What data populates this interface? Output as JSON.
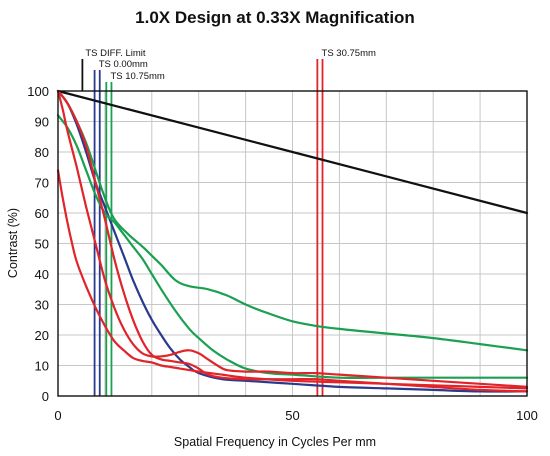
{
  "chart_data": {
    "type": "line",
    "title": "1.0X Design at 0.33X Magnification",
    "xlabel": "Spatial Frequency in Cycles Per mm",
    "ylabel": "Contrast (%)",
    "xlim": [
      0,
      100
    ],
    "ylim": [
      0,
      100
    ],
    "x_ticks": [
      0,
      50,
      100
    ],
    "y_ticks": [
      0,
      10,
      20,
      30,
      40,
      50,
      60,
      70,
      80,
      90,
      100
    ],
    "grid": true,
    "field_annotations": [
      {
        "label": "TS DIFF. Limit",
        "x": [
          5.2
        ],
        "color": "#111111"
      },
      {
        "label": "TS 0.00mm",
        "x": [
          7.8,
          8.9
        ],
        "color": "#2a3a8c"
      },
      {
        "label": "TS 10.75mm",
        "x": [
          10.3,
          11.4
        ],
        "color": "#1aa050"
      },
      {
        "label": "TS 30.75mm",
        "x": [
          55.3,
          56.4
        ],
        "color": "#e0242a"
      }
    ],
    "series": [
      {
        "color": "#111111",
        "width": 2.2,
        "x": [
          0,
          100
        ],
        "y": [
          100,
          60
        ]
      },
      {
        "color": "#2a3a8c",
        "width": 2.2,
        "x": [
          0,
          2,
          4,
          6,
          8,
          10,
          12,
          14,
          16,
          18,
          20,
          22,
          24,
          26,
          28,
          30,
          35,
          40,
          50,
          60,
          70,
          80,
          90,
          100
        ],
        "y": [
          100,
          96,
          89,
          80,
          70,
          62,
          54,
          46,
          38,
          31,
          25,
          20,
          15.5,
          12,
          9.5,
          7.5,
          5.5,
          5,
          4,
          3,
          2.5,
          2,
          1.5,
          1.5
        ]
      },
      {
        "color": "#1aa050",
        "width": 2.2,
        "x": [
          0,
          2,
          4,
          6,
          8,
          10,
          12,
          15,
          18,
          20,
          22,
          25,
          28,
          32,
          36,
          40,
          45,
          50,
          55,
          60,
          70,
          80,
          90,
          100
        ],
        "y": [
          100,
          96,
          90,
          83,
          74,
          65,
          58,
          53,
          49,
          46,
          43,
          38,
          36,
          35,
          33,
          30,
          27,
          24.5,
          23,
          22,
          20.5,
          19,
          17,
          15
        ]
      },
      {
        "color": "#1aa050",
        "width": 2.2,
        "x": [
          0,
          2,
          4,
          6,
          8,
          10,
          12,
          14,
          16,
          18,
          20,
          22,
          25,
          28,
          30,
          33,
          36,
          40,
          45,
          50,
          60,
          70,
          80,
          90,
          100
        ],
        "y": [
          92,
          88,
          82,
          74,
          66,
          60,
          57,
          53,
          49,
          45,
          40,
          35,
          28,
          22,
          19,
          15,
          12,
          9,
          7.5,
          7,
          6,
          6,
          6,
          6,
          6
        ]
      },
      {
        "color": "#e0242a",
        "width": 2.2,
        "x": [
          0,
          1,
          2,
          4,
          6,
          8,
          10,
          12,
          14,
          16,
          18,
          20,
          22,
          24,
          26,
          28,
          30,
          32,
          34,
          36,
          40,
          45,
          50,
          55,
          60,
          70,
          80,
          90,
          100
        ],
        "y": [
          100,
          94,
          87,
          75,
          62,
          50,
          38,
          29,
          22,
          17,
          14,
          13,
          13,
          13.5,
          14.5,
          15,
          14,
          12,
          10,
          8.5,
          8,
          8,
          7.5,
          7.5,
          7,
          6,
          5,
          4,
          3
        ]
      },
      {
        "color": "#e0242a",
        "width": 2.2,
        "x": [
          0,
          1,
          2,
          3,
          4,
          6,
          8,
          10,
          12,
          14,
          16,
          18,
          20,
          22,
          24,
          26,
          28,
          30,
          35,
          40,
          50,
          60,
          70,
          80,
          90,
          100
        ],
        "y": [
          74,
          65,
          57,
          50,
          44,
          36,
          29,
          23,
          18,
          15,
          12.5,
          11.5,
          11,
          10,
          9.5,
          9,
          8.5,
          8,
          7,
          6,
          5,
          4.5,
          4,
          3.5,
          3,
          2.5
        ]
      },
      {
        "color": "#e0242a",
        "width": 2.2,
        "x": [
          0,
          2,
          4,
          6,
          8,
          10,
          12,
          14,
          16,
          18,
          20,
          22,
          24,
          26,
          28,
          30,
          32,
          35,
          40,
          45,
          50,
          55,
          60,
          70,
          80,
          90,
          100
        ],
        "y": [
          100,
          96,
          90,
          82,
          70,
          58,
          45,
          34,
          25,
          18,
          13.5,
          12,
          11.5,
          11,
          10.5,
          9,
          7,
          6,
          5.5,
          5.5,
          5.5,
          5.5,
          5,
          4,
          3,
          2,
          1.5
        ]
      }
    ]
  }
}
